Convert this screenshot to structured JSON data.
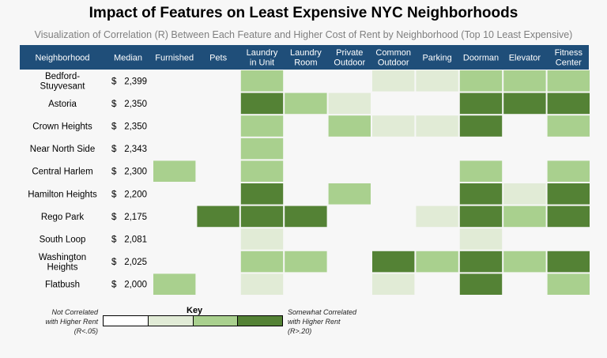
{
  "chart_data": {
    "type": "heatmap",
    "title": "Impact of Features on Least Expensive NYC Neighborhoods",
    "subtitle": "Visualization of Correlation (R) Between Each Feature and Higher Cost of Rent by Neighborhood (Top 10 Least Expensive)",
    "header": {
      "row_label": "Neighborhood",
      "median_label": "Median",
      "columns": [
        [
          "Furnished"
        ],
        [
          "Pets"
        ],
        [
          "Laundry",
          "in Unit"
        ],
        [
          "Laundry",
          "Room"
        ],
        [
          "Private",
          "Outdoor"
        ],
        [
          "Common",
          "Outdoor"
        ],
        [
          "Parking"
        ],
        [
          "Doorman"
        ],
        [
          "Elevator"
        ],
        [
          "Fitness",
          "Center"
        ]
      ]
    },
    "rows": [
      {
        "name": [
          "Bedford-",
          "Stuyvesant"
        ],
        "currency": "$",
        "median": "2,399",
        "levels": [
          0,
          0,
          2,
          0,
          0,
          1,
          1,
          2,
          2,
          2
        ]
      },
      {
        "name": [
          "Astoria"
        ],
        "currency": "$",
        "median": "2,350",
        "levels": [
          0,
          0,
          3,
          2,
          1,
          0,
          0,
          3,
          3,
          3
        ]
      },
      {
        "name": [
          "Crown Heights"
        ],
        "currency": "$",
        "median": "2,350",
        "levels": [
          0,
          0,
          2,
          0,
          2,
          1,
          1,
          3,
          0,
          2
        ]
      },
      {
        "name": [
          "Near North Side"
        ],
        "currency": "$",
        "median": "2,343",
        "levels": [
          0,
          0,
          2,
          0,
          0,
          0,
          0,
          0,
          0,
          0
        ]
      },
      {
        "name": [
          "Central Harlem"
        ],
        "currency": "$",
        "median": "2,300",
        "levels": [
          2,
          0,
          2,
          0,
          0,
          0,
          0,
          2,
          0,
          2
        ]
      },
      {
        "name": [
          "Hamilton Heights"
        ],
        "currency": "$",
        "median": "2,200",
        "levels": [
          0,
          0,
          3,
          0,
          2,
          0,
          0,
          3,
          1,
          3
        ]
      },
      {
        "name": [
          "Rego Park"
        ],
        "currency": "$",
        "median": "2,175",
        "levels": [
          0,
          3,
          3,
          3,
          0,
          0,
          1,
          3,
          2,
          3
        ]
      },
      {
        "name": [
          "South Loop"
        ],
        "currency": "$",
        "median": "2,081",
        "levels": [
          0,
          0,
          1,
          0,
          0,
          0,
          0,
          1,
          0,
          0
        ]
      },
      {
        "name": [
          "Washington",
          "Heights"
        ],
        "currency": "$",
        "median": "2,025",
        "levels": [
          0,
          0,
          2,
          2,
          0,
          3,
          2,
          3,
          2,
          3
        ]
      },
      {
        "name": [
          "Flatbush"
        ],
        "currency": "$",
        "median": "2,000",
        "levels": [
          2,
          0,
          1,
          0,
          0,
          1,
          0,
          3,
          0,
          2
        ]
      }
    ],
    "scale_colors": [
      "#ffffff",
      "#e1ebd6",
      "#a9d08e",
      "#548235"
    ],
    "header_color": "#1f4e79",
    "key": {
      "title": "Key",
      "left_note": [
        "Not Correlated",
        "with Higher Rent",
        "(R<.05)"
      ],
      "right_note": [
        "Somewhat Correlated",
        "with Higher Rent",
        "(R>.20)"
      ]
    }
  }
}
